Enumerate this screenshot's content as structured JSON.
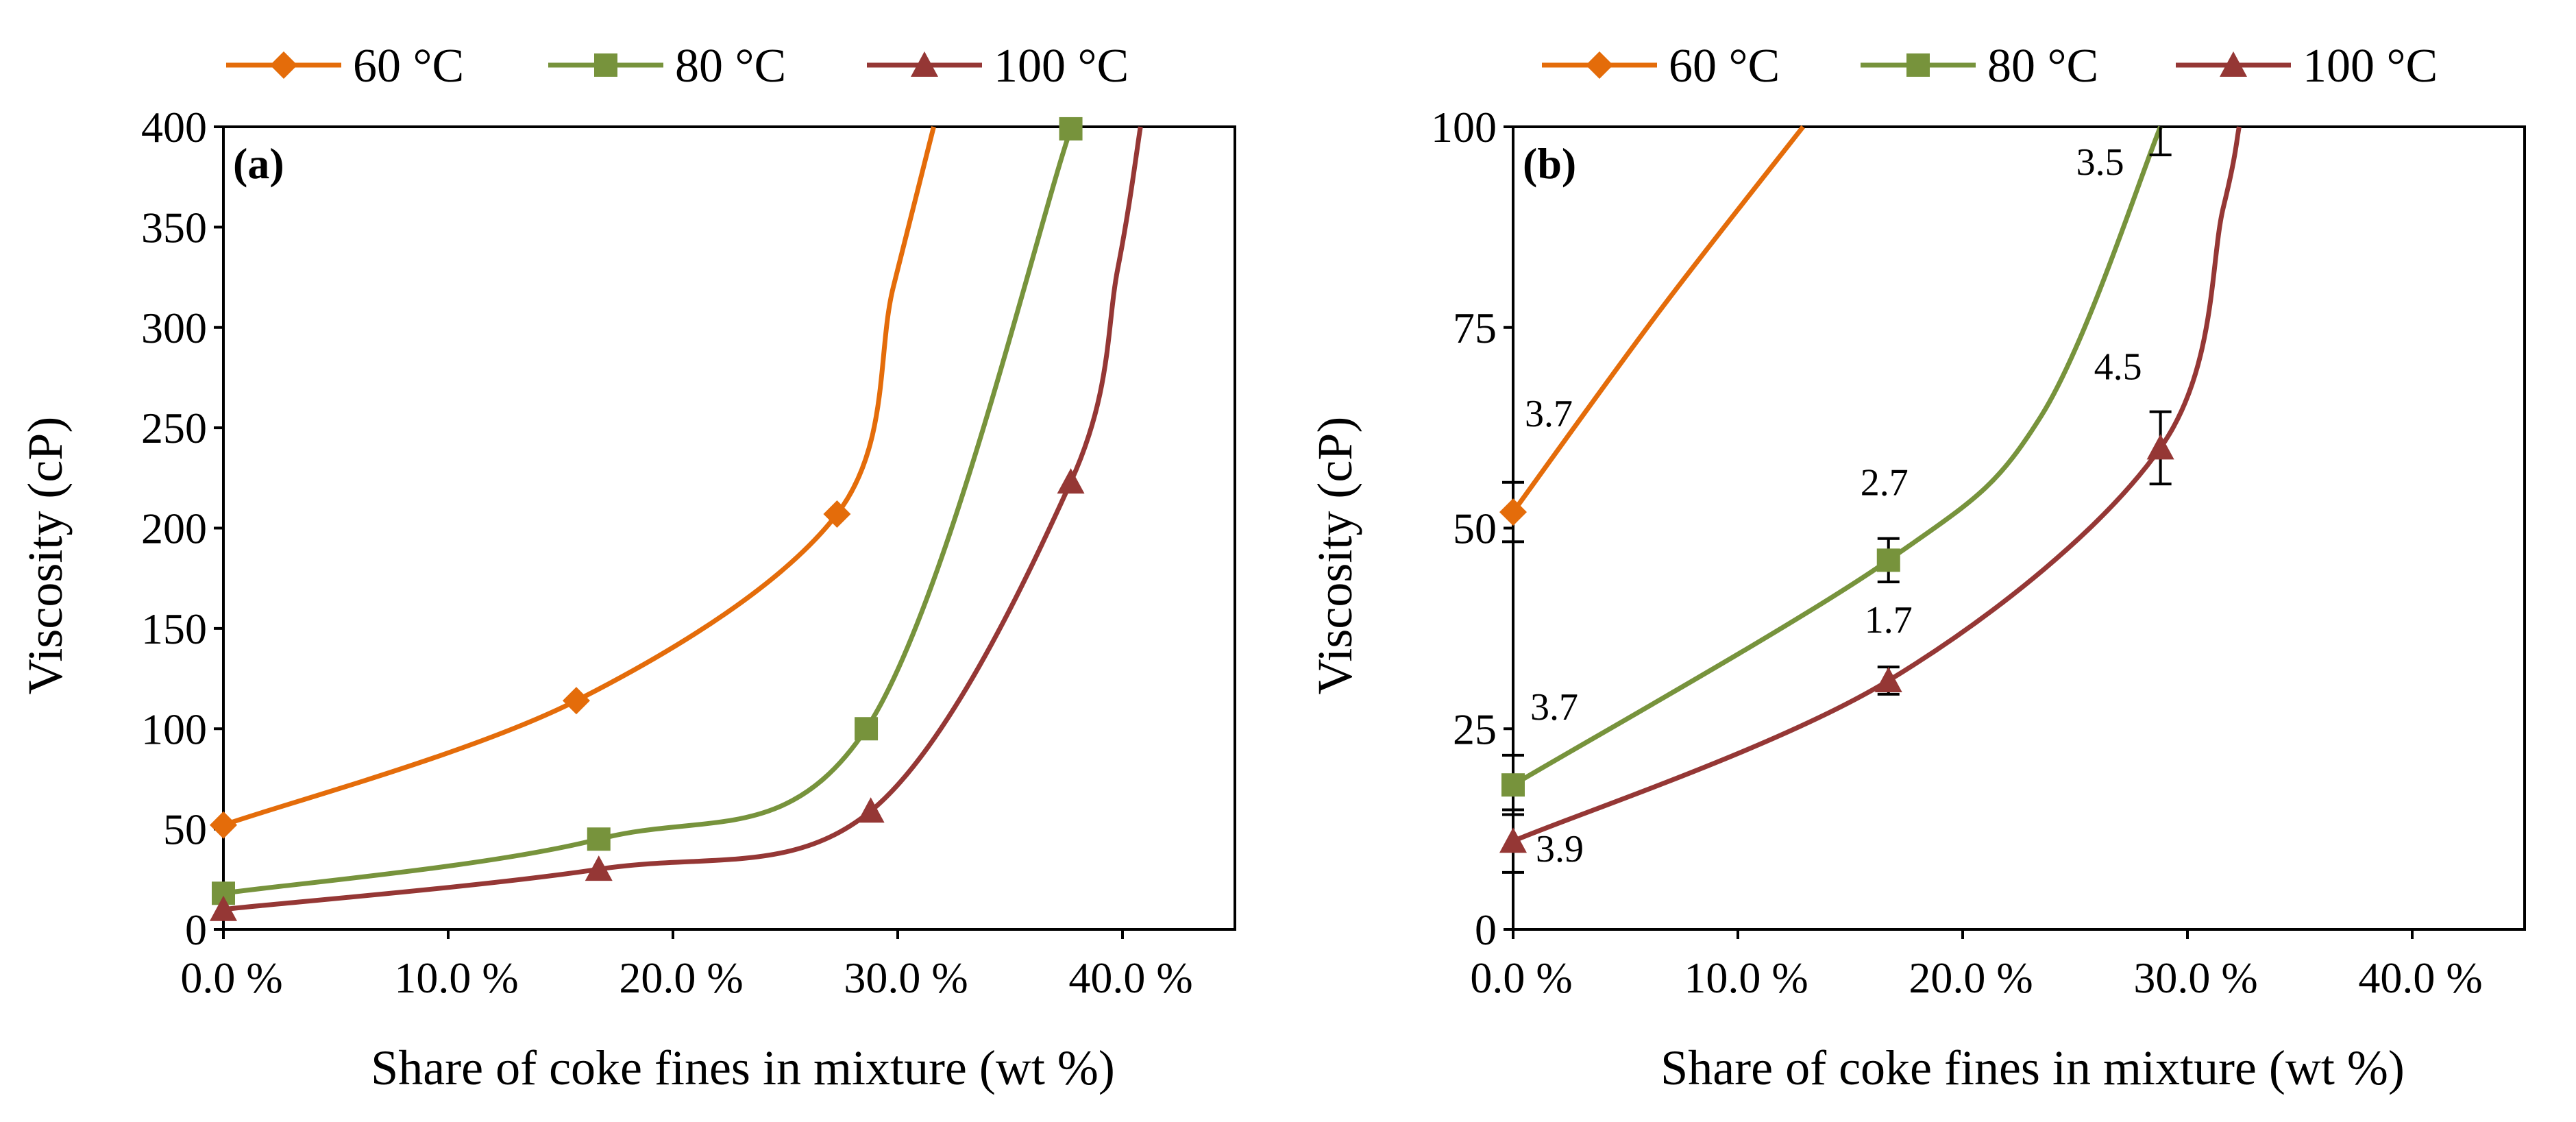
{
  "chart_data": [
    {
      "type": "line",
      "panel": "(a)",
      "xlabel": "Share of coke fines in mixture (wt %)",
      "ylabel": "Viscosity (cP)",
      "xlim": [
        0,
        45
      ],
      "ylim": [
        0,
        400
      ],
      "xticks": [
        0,
        10,
        20,
        30,
        40
      ],
      "xtick_labels": [
        "0.0 %",
        "10.0 %",
        "20.0 %",
        "30.0 %",
        "40.0 %"
      ],
      "yticks": [
        0,
        50,
        100,
        150,
        200,
        250,
        300,
        350,
        400
      ],
      "ytick_labels": [
        "0",
        "50",
        "100",
        "150",
        "200",
        "250",
        "300",
        "350",
        "400"
      ],
      "legend": "top",
      "series": [
        {
          "name": "60 °C",
          "color": "#E46C0A",
          "marker": "diamond",
          "x": [
            0,
            15.7,
            27.3
          ],
          "y": [
            52,
            114,
            207
          ],
          "curve_tail": {
            "x": [
              29.8,
              31.6
            ],
            "y": [
              320,
              400
            ]
          }
        },
        {
          "name": "80 °C",
          "color": "#77933C",
          "marker": "square",
          "x": [
            0,
            16.7,
            28.6,
            37.7
          ],
          "y": [
            18,
            45,
            100,
            399
          ],
          "curve_tail": null
        },
        {
          "name": "100 °C",
          "color": "#953735",
          "marker": "triangle",
          "x": [
            0,
            16.7,
            28.8,
            37.7
          ],
          "y": [
            10,
            30,
            59,
            223
          ],
          "curve_tail": {
            "x": [
              39.8,
              40.8
            ],
            "y": [
              330,
              400
            ]
          }
        }
      ]
    },
    {
      "type": "line",
      "panel": "(b)",
      "xlabel": "Share of coke fines in mixture (wt %)",
      "ylabel": "Viscosity (cP)",
      "xlim": [
        0,
        45
      ],
      "ylim": [
        0,
        100
      ],
      "xticks": [
        0,
        10,
        20,
        30,
        40
      ],
      "xtick_labels": [
        "0.0 %",
        "10.0 %",
        "20.0 %",
        "30.0 %",
        "40.0 %"
      ],
      "yticks": [
        0,
        25,
        50,
        75,
        100
      ],
      "ytick_labels": [
        "0",
        "25",
        "50",
        "75",
        "100"
      ],
      "legend": "top",
      "series": [
        {
          "name": "60 °C",
          "color": "#E46C0A",
          "marker": "diamond",
          "x": [
            0
          ],
          "y": [
            52
          ],
          "err": [
            3.7
          ],
          "err_labels": [
            "3.7"
          ],
          "curve_tail": {
            "x": [
              6.5,
              12.9
            ],
            "y": [
              77,
              100
            ]
          }
        },
        {
          "name": "80 °C",
          "color": "#77933C",
          "marker": "square",
          "x": [
            0,
            16.7
          ],
          "y": [
            18,
            46
          ],
          "err": [
            3.7,
            2.7
          ],
          "err_labels": [
            "3.7",
            "2.7"
          ],
          "curve_tail": {
            "x": [
              23.5,
              28.8
            ],
            "y": [
              64,
              100
            ]
          },
          "extra_err": {
            "x": 28.8,
            "y": 100,
            "err": 3.5,
            "label": "3.5"
          }
        },
        {
          "name": "100 °C",
          "color": "#953735",
          "marker": "triangle",
          "x": [
            0,
            16.7,
            28.8
          ],
          "y": [
            11,
            31,
            60
          ],
          "err": [
            3.9,
            1.7,
            4.5
          ],
          "err_labels": [
            "3.9",
            "1.7",
            "4.5"
          ],
          "curve_tail": {
            "x": [
              31.6,
              32.3
            ],
            "y": [
              90,
              100
            ]
          }
        }
      ]
    }
  ]
}
